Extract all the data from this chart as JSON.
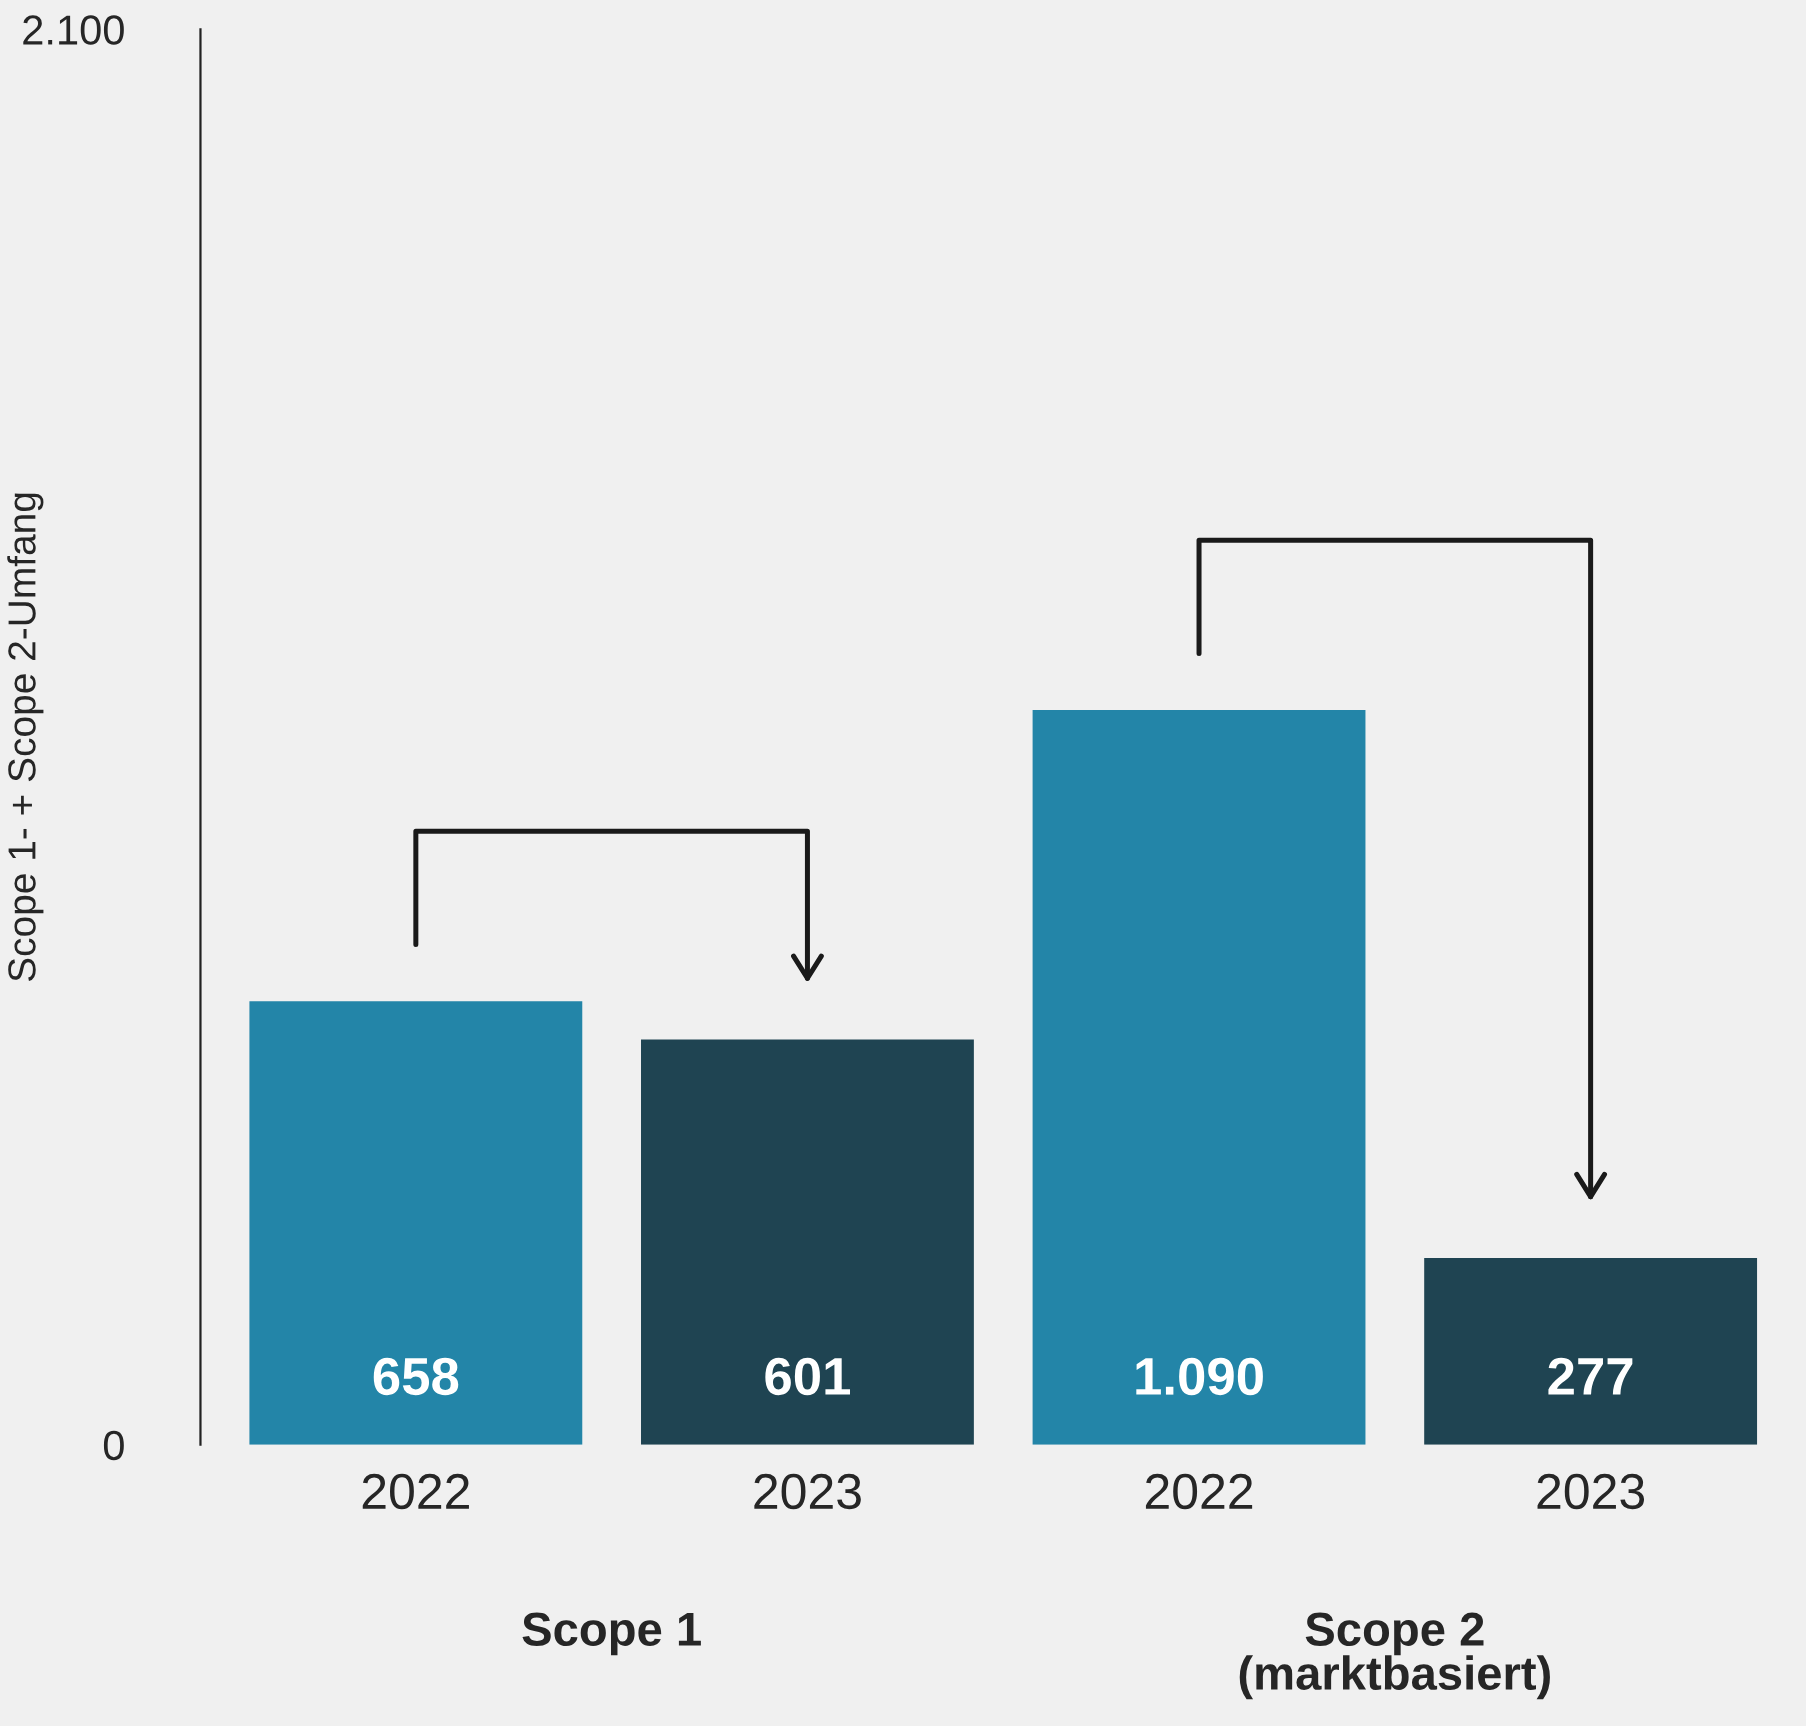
{
  "chart_data": {
    "type": "bar",
    "categories": [
      "2022",
      "2023",
      "2022",
      "2023"
    ],
    "values": [
      658,
      601,
      1090,
      277
    ],
    "colors": [
      "#2385a8",
      "#1f4452",
      "#2385a8",
      "#1f4452"
    ],
    "value_labels": [
      "658",
      "601",
      "1.090",
      "277"
    ],
    "ylabel": "Scope 1- + Scope 2-Umfang",
    "ylim": [
      0,
      2100
    ],
    "yticks": [
      0,
      {
        "value": 2100,
        "label": "2.100"
      }
    ],
    "annotations": [
      "Scope 1",
      "Scope 2\n(marktbasiert)"
    ],
    "grid": false,
    "legend": false
  }
}
